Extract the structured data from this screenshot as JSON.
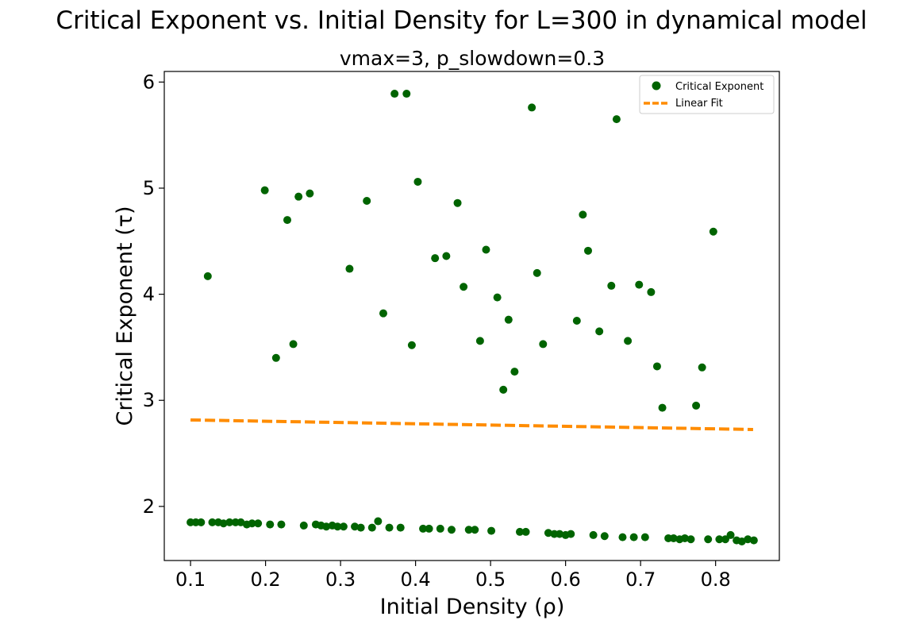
{
  "suptitle": "Critical Exponent vs. Initial Density for L=300 in dynamical model",
  "colors": {
    "points": "#006400",
    "fit": "#ff8c00"
  },
  "chart_data": {
    "type": "scatter",
    "title": "vmax=3, p_slowdown=0.3",
    "xlabel": "Initial Density (ρ)",
    "ylabel": "Critical Exponent (τ)",
    "xlim": [
      0.065,
      0.885
    ],
    "ylim": [
      1.49,
      6.1
    ],
    "xticks": [
      0.1,
      0.2,
      0.3,
      0.4,
      0.5,
      0.6,
      0.7,
      0.8
    ],
    "xtick_labels": [
      "0.1",
      "0.2",
      "0.3",
      "0.4",
      "0.5",
      "0.6",
      "0.7",
      "0.8"
    ],
    "yticks": [
      2,
      3,
      4,
      5,
      6
    ],
    "ytick_labels": [
      "2",
      "3",
      "4",
      "5",
      "6"
    ],
    "grid": false,
    "legend_position": "top-right",
    "series": [
      {
        "name": "Critical Exponent",
        "kind": "scatter",
        "x": [
          0.1,
          0.107,
          0.114,
          0.129,
          0.137,
          0.144,
          0.152,
          0.16,
          0.167,
          0.175,
          0.182,
          0.19,
          0.206,
          0.221,
          0.251,
          0.267,
          0.274,
          0.281,
          0.289,
          0.296,
          0.304,
          0.319,
          0.327,
          0.342,
          0.35,
          0.365,
          0.38,
          0.41,
          0.418,
          0.433,
          0.448,
          0.471,
          0.479,
          0.501,
          0.539,
          0.547,
          0.577,
          0.585,
          0.592,
          0.6,
          0.607,
          0.637,
          0.652,
          0.676,
          0.691,
          0.706,
          0.737,
          0.744,
          0.752,
          0.759,
          0.767,
          0.79,
          0.805,
          0.813,
          0.82,
          0.828,
          0.835,
          0.843,
          0.851,
          0.123,
          0.199,
          0.214,
          0.229,
          0.237,
          0.244,
          0.259,
          0.312,
          0.335,
          0.357,
          0.372,
          0.388,
          0.395,
          0.403,
          0.426,
          0.441,
          0.456,
          0.464,
          0.486,
          0.494,
          0.509,
          0.517,
          0.524,
          0.532,
          0.555,
          0.562,
          0.57,
          0.615,
          0.623,
          0.63,
          0.645,
          0.661,
          0.668,
          0.683,
          0.698,
          0.714,
          0.722,
          0.729,
          0.774,
          0.782,
          0.797
        ],
        "y": [
          1.85,
          1.85,
          1.85,
          1.85,
          1.85,
          1.84,
          1.85,
          1.85,
          1.85,
          1.83,
          1.84,
          1.84,
          1.83,
          1.83,
          1.82,
          1.83,
          1.82,
          1.81,
          1.82,
          1.81,
          1.81,
          1.81,
          1.8,
          1.8,
          1.86,
          1.8,
          1.8,
          1.79,
          1.79,
          1.79,
          1.78,
          1.78,
          1.78,
          1.77,
          1.76,
          1.76,
          1.75,
          1.74,
          1.74,
          1.73,
          1.74,
          1.73,
          1.72,
          1.71,
          1.71,
          1.71,
          1.7,
          1.7,
          1.69,
          1.7,
          1.69,
          1.69,
          1.69,
          1.69,
          1.73,
          1.68,
          1.67,
          1.69,
          1.68,
          4.17,
          4.98,
          3.4,
          4.7,
          3.53,
          4.92,
          4.95,
          4.24,
          4.88,
          3.82,
          5.89,
          5.89,
          3.52,
          5.06,
          4.34,
          4.36,
          4.86,
          4.07,
          3.56,
          4.42,
          3.97,
          3.1,
          3.76,
          3.27,
          5.76,
          4.2,
          3.53,
          3.75,
          4.75,
          4.41,
          3.65,
          4.08,
          5.65,
          3.56,
          4.09,
          4.02,
          3.32,
          2.93,
          2.95,
          3.31,
          4.59
        ]
      },
      {
        "name": "Linear Fit",
        "kind": "line",
        "style": "dashed",
        "x": [
          0.1,
          0.85
        ],
        "y": [
          2.815,
          2.725
        ]
      }
    ]
  }
}
